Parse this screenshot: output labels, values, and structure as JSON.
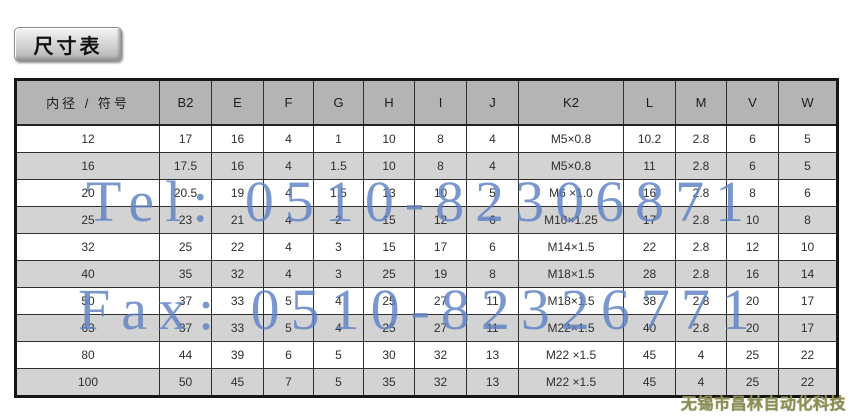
{
  "page": {
    "title": "尺寸表"
  },
  "watermark": {
    "line1": "Tel: 0510-82306871",
    "line2": "Fax: 0510-82326771"
  },
  "brand": {
    "text": "无锡市昌林自动化科技"
  },
  "table": {
    "headers": [
      "内径 / 符号",
      "B2",
      "E",
      "F",
      "G",
      "H",
      "I",
      "J",
      "K2",
      "L",
      "M",
      "V",
      "W"
    ],
    "rows": [
      [
        "12",
        "17",
        "16",
        "4",
        "1",
        "10",
        "8",
        "4",
        "M5×0.8",
        "10.2",
        "2.8",
        "6",
        "5"
      ],
      [
        "16",
        "17.5",
        "16",
        "4",
        "1.5",
        "10",
        "8",
        "4",
        "M5×0.8",
        "11",
        "2.8",
        "6",
        "5"
      ],
      [
        "20",
        "20.5",
        "19",
        "4",
        "1.5",
        "13",
        "10",
        "5",
        "M6 ×1.0",
        "16",
        "2.8",
        "8",
        "6"
      ],
      [
        "25",
        "23",
        "21",
        "4",
        "2",
        "15",
        "12",
        "6",
        "M10×1.25",
        "17",
        "2.8",
        "10",
        "8"
      ],
      [
        "32",
        "25",
        "22",
        "4",
        "3",
        "15",
        "17",
        "6",
        "M14×1.5",
        "22",
        "2.8",
        "12",
        "10"
      ],
      [
        "40",
        "35",
        "32",
        "4",
        "3",
        "25",
        "19",
        "8",
        "M18×1.5",
        "28",
        "2.8",
        "16",
        "14"
      ],
      [
        "50",
        "37",
        "33",
        "5",
        "4",
        "25",
        "27",
        "11",
        "M18×1.5",
        "38",
        "2.8",
        "20",
        "17"
      ],
      [
        "63",
        "37",
        "33",
        "5",
        "4",
        "25",
        "27",
        "11",
        "M22×1.5",
        "40",
        "2.8",
        "20",
        "17"
      ],
      [
        "80",
        "44",
        "39",
        "6",
        "5",
        "30",
        "32",
        "13",
        "M22 ×1.5",
        "45",
        "4",
        "25",
        "22"
      ],
      [
        "100",
        "50",
        "45",
        "7",
        "5",
        "35",
        "32",
        "13",
        "M22 ×1.5",
        "45",
        "4",
        "25",
        "22"
      ]
    ]
  },
  "colors": {
    "watermark": "#5e82c4",
    "brand": "#8e9055",
    "header_bg": "#b4b4b4",
    "row_alt_bg": "#d3d3d3",
    "table_border": "#151515"
  }
}
